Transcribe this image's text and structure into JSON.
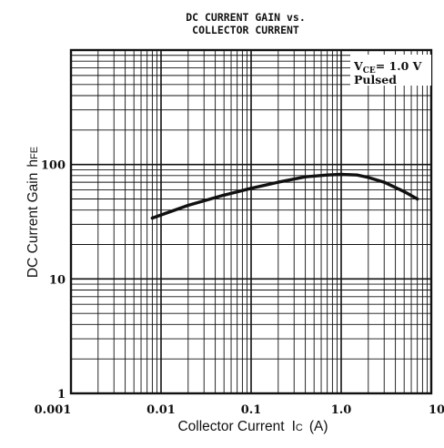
{
  "chart_data": {
    "type": "line",
    "title_lines": [
      "DC CURRENT GAIN vs.",
      "COLLECTOR CURRENT"
    ],
    "xlabel": "Collector Current",
    "xlabel_symbol": "I",
    "xlabel_symbol_sub": "C",
    "xlabel_unit": "(A)",
    "ylabel": "DC Current Gain",
    "ylabel_symbol": "h",
    "ylabel_symbol_sub": "FE",
    "x_scale": "log",
    "y_scale": "log",
    "xlim": [
      0.001,
      10
    ],
    "ylim": [
      1,
      1000
    ],
    "x_tick_labels": [
      "0.001",
      "0.01",
      "0.1",
      "1.0",
      "10"
    ],
    "y_tick_labels": [
      "1",
      "10",
      "100"
    ],
    "annotation": {
      "line1_main": "V",
      "line1_sub": "CE",
      "line1_rest": "= 1.0  V",
      "line2": "Pulsed"
    },
    "grid": true,
    "series": [
      {
        "x": [
          0.008,
          0.02,
          0.05,
          0.1,
          0.2,
          0.4,
          0.7,
          1.0,
          1.5,
          2.0,
          3.0,
          5.0,
          7.0
        ],
        "y": [
          34,
          44,
          54,
          62,
          70,
          78,
          81,
          82,
          81,
          77,
          70,
          58,
          50
        ]
      }
    ]
  }
}
